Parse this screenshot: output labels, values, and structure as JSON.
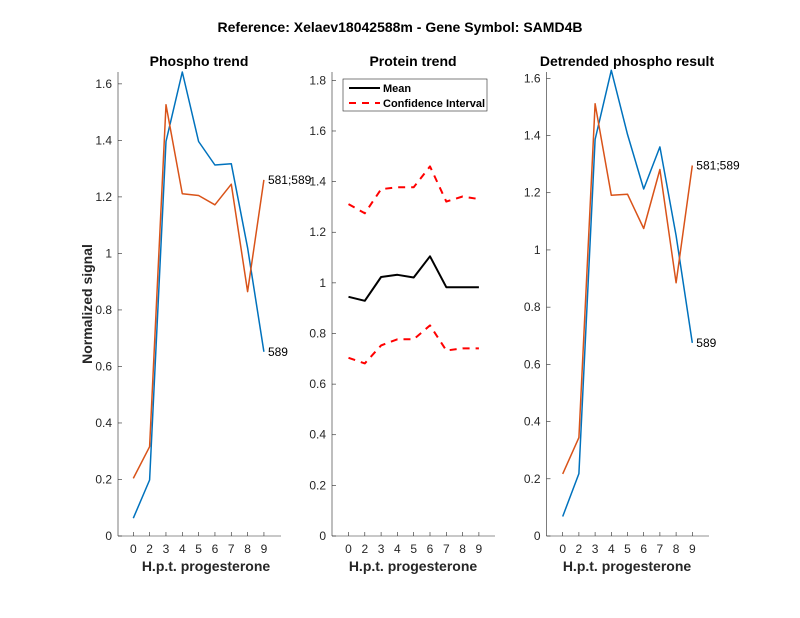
{
  "figure": {
    "title": "Reference:  Xelaev18042588m - Gene Symbol:  SAMD4B"
  },
  "colors": {
    "blue": "#0072BD",
    "orange": "#D95319",
    "black": "#000000",
    "red": "#FF0000",
    "axis": "#262626"
  },
  "chart_data": [
    {
      "type": "line",
      "title": "Phospho trend",
      "xlabel": "H.p.t. progesterone",
      "ylabel": "Normalized signal",
      "x": [
        "0",
        "2",
        "3",
        "4",
        "5",
        "6",
        "7",
        "8",
        "9"
      ],
      "ylim": [
        0,
        1.642
      ],
      "yticks": [
        "0",
        "0.2",
        "0.4",
        "0.6",
        "0.8",
        "1",
        "1.2",
        "1.4",
        "1.6"
      ],
      "ytick_values": [
        0,
        0.2,
        0.4,
        0.6,
        0.8,
        1,
        1.2,
        1.4,
        1.6
      ],
      "grid": false,
      "series": [
        {
          "name": "589",
          "color": "blue",
          "values": [
            0.063,
            0.198,
            1.396,
            1.642,
            1.396,
            1.313,
            1.317,
            1.02,
            0.652
          ],
          "end_label": "589"
        },
        {
          "name": "581;589",
          "color": "orange",
          "values": [
            0.204,
            0.316,
            1.526,
            1.211,
            1.205,
            1.172,
            1.245,
            0.865,
            1.26
          ],
          "end_label": "581;589"
        }
      ]
    },
    {
      "type": "line",
      "title": "Protein trend",
      "xlabel": "H.p.t. progesterone",
      "ylabel": "",
      "x": [
        "0",
        "2",
        "3",
        "4",
        "5",
        "6",
        "7",
        "8",
        "9"
      ],
      "ylim": [
        0,
        1.833
      ],
      "yticks": [
        "0",
        "0.2",
        "0.4",
        "0.6",
        "0.8",
        "1",
        "1.2",
        "1.4",
        "1.6",
        "1.8"
      ],
      "ytick_values": [
        0,
        0.2,
        0.4,
        0.6,
        0.8,
        1,
        1.2,
        1.4,
        1.6,
        1.8
      ],
      "grid": false,
      "legend": {
        "placement": "top-left",
        "entries": [
          "Mean",
          "Confidence Interval"
        ]
      },
      "series": [
        {
          "name": "Mean",
          "color": "black",
          "style": "solid",
          "values": [
            0.945,
            0.929,
            1.023,
            1.032,
            1.021,
            1.105,
            0.983,
            0.983,
            0.983
          ]
        },
        {
          "name": "Confidence Interval",
          "color": "red",
          "style": "dashed",
          "values": [
            1.311,
            1.275,
            1.37,
            1.378,
            1.378,
            1.46,
            1.321,
            1.341,
            1.331
          ]
        },
        {
          "name": "Confidence Interval (lower)",
          "color": "red",
          "style": "dashed",
          "values": [
            0.704,
            0.682,
            0.753,
            0.777,
            0.777,
            0.832,
            0.733,
            0.741,
            0.741
          ]
        }
      ]
    },
    {
      "type": "line",
      "title": "Detrended phospho result",
      "xlabel": "H.p.t. progesterone",
      "ylabel": "",
      "x": [
        "0",
        "2",
        "3",
        "4",
        "5",
        "6",
        "7",
        "8",
        "9"
      ],
      "ylim": [
        0,
        1.622
      ],
      "yticks": [
        "0",
        "0.2",
        "0.4",
        "0.6",
        "0.8",
        "1",
        "1.2",
        "1.4",
        "1.6"
      ],
      "ytick_values": [
        0,
        0.2,
        0.4,
        0.6,
        0.8,
        1,
        1.2,
        1.4,
        1.6
      ],
      "grid": false,
      "series": [
        {
          "name": "589",
          "color": "blue",
          "values": [
            0.068,
            0.218,
            1.386,
            1.628,
            1.404,
            1.213,
            1.36,
            1.05,
            0.675
          ],
          "end_label": "589"
        },
        {
          "name": "581;589",
          "color": "orange",
          "values": [
            0.217,
            0.344,
            1.511,
            1.191,
            1.195,
            1.075,
            1.281,
            0.885,
            1.295
          ],
          "end_label": "581;589"
        }
      ]
    }
  ]
}
